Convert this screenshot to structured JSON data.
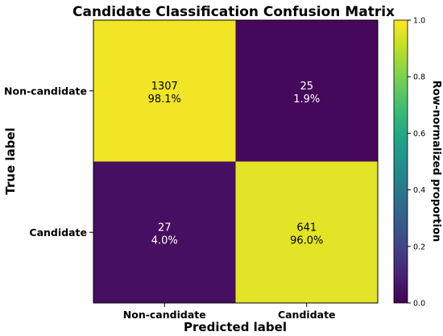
{
  "chart_data": {
    "type": "heatmap",
    "title": "Candidate Classification Confusion Matrix",
    "xlabel": "Predicted label",
    "ylabel": "True label",
    "x_categories": [
      "Non-candidate",
      "Candidate"
    ],
    "y_categories": [
      "Non-candidate",
      "Candidate"
    ],
    "counts": [
      [
        1307,
        25
      ],
      [
        27,
        641
      ]
    ],
    "percent_labels": [
      [
        "98.1%",
        "1.9%"
      ],
      [
        "4.0%",
        "96.0%"
      ]
    ],
    "normalized": [
      [
        0.981,
        0.019
      ],
      [
        0.04,
        0.96
      ]
    ],
    "colorbar": {
      "label": "Row-normalized proportion",
      "range": [
        0.0,
        1.0
      ],
      "ticks": [
        "0.0",
        "0.2",
        "0.4",
        "0.6",
        "0.8",
        "1.0"
      ],
      "colormap": "viridis"
    },
    "grid": false
  }
}
